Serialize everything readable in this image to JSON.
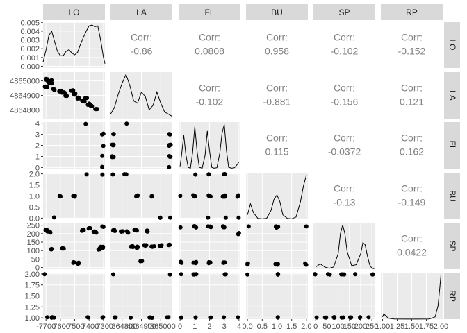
{
  "chart_data": {
    "type": "scatter-matrix",
    "variables": [
      "LO",
      "LA",
      "FL",
      "BU",
      "SP",
      "RP"
    ],
    "correlations": [
      {
        "row": "LA",
        "col": "LO",
        "value": "-0.86"
      },
      {
        "row": "FL",
        "col": "LO",
        "value": "0.0808"
      },
      {
        "row": "FL",
        "col": "LA",
        "value": "-0.102"
      },
      {
        "row": "BU",
        "col": "LO",
        "value": "0.958"
      },
      {
        "row": "BU",
        "col": "LA",
        "value": "-0.881"
      },
      {
        "row": "BU",
        "col": "FL",
        "value": "0.115"
      },
      {
        "row": "SP",
        "col": "LO",
        "value": "-0.102"
      },
      {
        "row": "SP",
        "col": "LA",
        "value": "-0.156"
      },
      {
        "row": "SP",
        "col": "FL",
        "value": "-0.0372"
      },
      {
        "row": "SP",
        "col": "BU",
        "value": "-0.13"
      },
      {
        "row": "RP",
        "col": "LO",
        "value": "-0.152"
      },
      {
        "row": "RP",
        "col": "LA",
        "value": "0.121"
      },
      {
        "row": "RP",
        "col": "FL",
        "value": "0.162"
      },
      {
        "row": "RP",
        "col": "BU",
        "value": "-0.149"
      },
      {
        "row": "RP",
        "col": "SP",
        "value": "0.0422"
      }
    ],
    "corr_label": "Corr:",
    "y_ticks": {
      "LO": [
        "0.000",
        "0.001",
        "0.002",
        "0.003",
        "0.004",
        "0.005"
      ],
      "LA": [
        "4864800",
        "4864900",
        "4865000"
      ],
      "FL": [
        "0",
        "1",
        "2",
        "3",
        "4"
      ],
      "BU": [
        "0.0",
        "0.5",
        "1.0",
        "1.5",
        "2.0"
      ],
      "SP": [
        "0",
        "50",
        "100",
        "150",
        "200",
        "250"
      ],
      "RP": [
        "1.00",
        "1.25",
        "1.50",
        "1.75",
        "2.00"
      ]
    },
    "x_ticks": {
      "LO": [
        "-7700",
        "-7600",
        "-7500",
        "-7400",
        "-7300"
      ],
      "LA": [
        "4864800",
        "4864900",
        "4865000"
      ],
      "FL": [
        "0",
        "1",
        "2",
        "3",
        "4"
      ],
      "BU": [
        "0.0",
        "0.5",
        "1.0",
        "1.5",
        "2.0"
      ],
      "SP": [
        "0",
        "50",
        "100",
        "150",
        "200",
        "250"
      ],
      "RP": [
        "1.00",
        "1.25",
        "1.50",
        "1.75",
        "2.00"
      ]
    },
    "density_LO": {
      "x": [
        -7720,
        -7700,
        -7680,
        -7660,
        -7640,
        -7620,
        -7600,
        -7580,
        -7560,
        -7540,
        -7520,
        -7500,
        -7480,
        -7460,
        -7440,
        -7420,
        -7400,
        -7380,
        -7360,
        -7340,
        -7320,
        -7300,
        -7290
      ],
      "y": [
        0.0005,
        0.0018,
        0.0035,
        0.004,
        0.0028,
        0.0017,
        0.0012,
        0.0012,
        0.0017,
        0.0019,
        0.0015,
        0.0013,
        0.0016,
        0.0025,
        0.0033,
        0.004,
        0.0046,
        0.0047,
        0.0045,
        0.0046,
        0.003,
        0.001,
        0.0003
      ]
    },
    "density_LA": {
      "x": [
        4864740,
        4864760,
        4864780,
        4864800,
        4864820,
        4864840,
        4864860,
        4864880,
        4864900,
        4864920,
        4864940,
        4864960,
        4864980,
        4865000,
        4865020,
        4865040,
        4865060
      ],
      "y": [
        0.1,
        0.25,
        0.55,
        0.8,
        1.0,
        0.75,
        0.4,
        0.35,
        0.6,
        0.5,
        0.2,
        0.3,
        0.6,
        0.35,
        0.15,
        0.1,
        0.05
      ]
    },
    "density_FL": {
      "x": [
        0,
        0.1,
        0.25,
        0.4,
        0.55,
        0.7,
        0.85,
        1.0,
        1.15,
        1.3,
        1.5,
        1.7,
        1.85,
        2.0,
        2.15,
        2.3,
        2.5,
        2.7,
        2.85,
        3.0,
        3.15,
        3.3,
        3.5,
        3.7,
        3.85,
        4.0
      ],
      "y": [
        0.05,
        0.3,
        0.75,
        0.3,
        0.03,
        0.01,
        0.35,
        0.95,
        0.4,
        0.03,
        0.01,
        0.3,
        0.85,
        0.4,
        0.03,
        0.01,
        0.02,
        0.35,
        0.8,
        1.0,
        0.4,
        0.03,
        0.01,
        0.02,
        0.08,
        0.15
      ]
    },
    "density_BU": {
      "x": [
        0,
        0.1,
        0.2,
        0.35,
        0.5,
        0.65,
        0.8,
        0.9,
        1.0,
        1.1,
        1.2,
        1.35,
        1.5,
        1.65,
        1.8,
        1.9,
        2.0
      ],
      "y": [
        0.1,
        0.35,
        0.15,
        0.02,
        0.01,
        0.02,
        0.2,
        0.45,
        0.55,
        0.4,
        0.1,
        0.02,
        0.01,
        0.05,
        0.4,
        0.75,
        1.0
      ]
    },
    "density_SP": {
      "x": [
        0,
        20,
        40,
        60,
        80,
        100,
        110,
        120,
        130,
        140,
        160,
        180,
        200,
        210,
        220,
        230,
        240,
        250,
        260
      ],
      "y": [
        0.05,
        0.12,
        0.05,
        0.02,
        0.05,
        0.35,
        0.8,
        1.0,
        0.8,
        0.4,
        0.08,
        0.1,
        0.35,
        0.6,
        0.55,
        0.3,
        0.1,
        0.02,
        0.01
      ]
    },
    "density_RP": {
      "x": [
        1.0,
        1.02,
        1.05,
        1.1,
        1.2,
        1.4,
        1.6,
        1.8,
        1.9,
        1.95,
        1.98,
        2.0
      ],
      "y": [
        0.05,
        0.12,
        0.08,
        0.02,
        0.005,
        0.002,
        0.002,
        0.005,
        0.05,
        0.3,
        0.7,
        1.0
      ]
    },
    "grid": true,
    "panel_background": "#ebebeb",
    "strip_background": "#d9d9d9",
    "point_color": "#000000",
    "corr_color": "#808080"
  }
}
